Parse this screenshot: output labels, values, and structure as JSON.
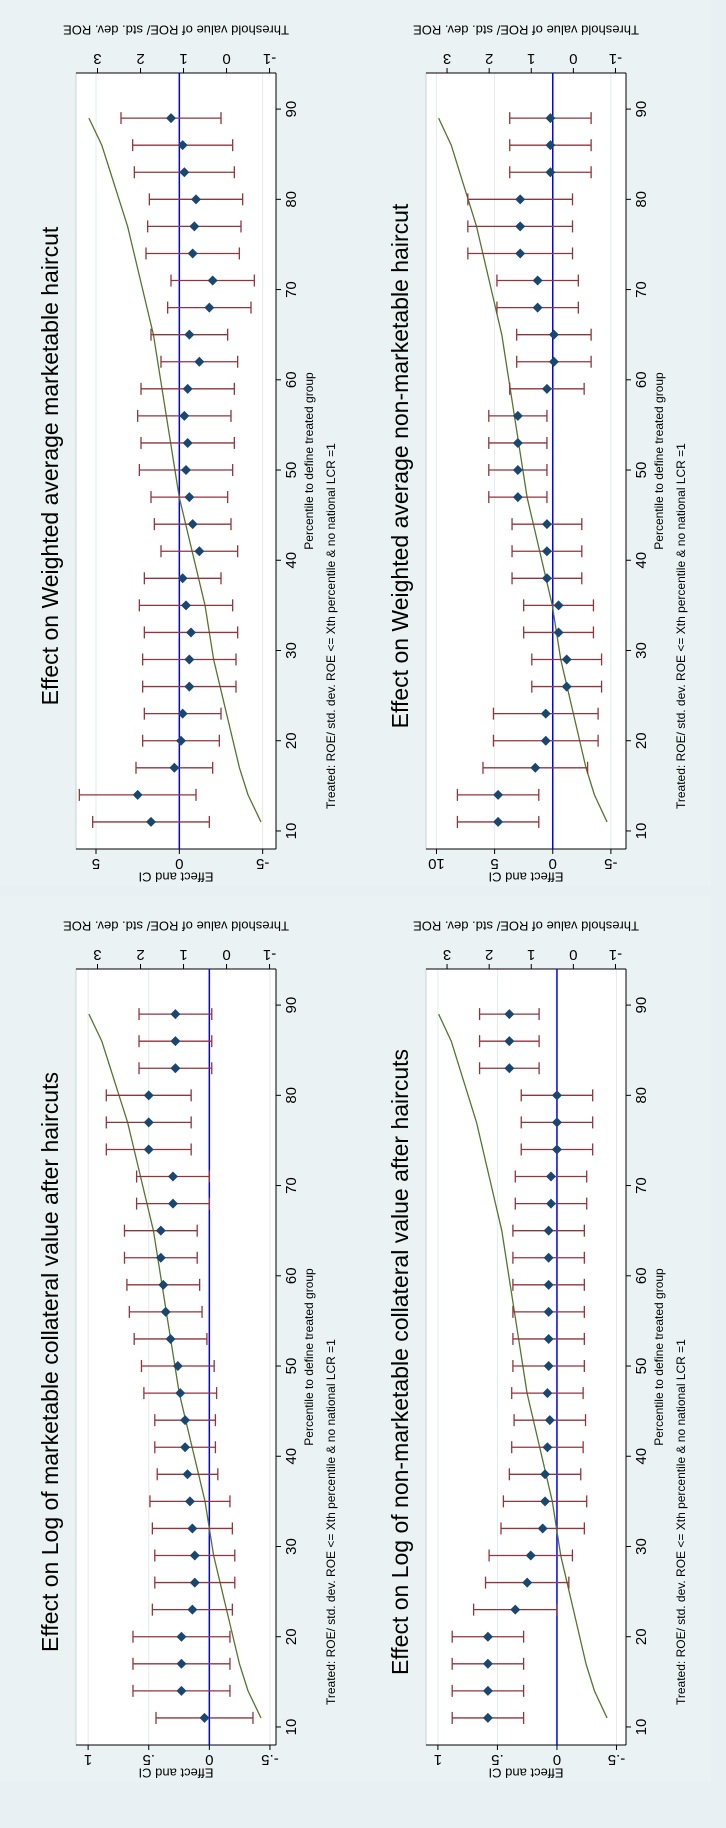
{
  "chart_data": [
    {
      "type": "errorbar",
      "title": "Effect on Weighted average marketable haircut",
      "xlabel": "Percentile to define treated group",
      "note": "Treated: ROE/ std. dev. ROE <= Xth percentile & no national LCR =1",
      "ylabel": "Effect and CI",
      "y2label": "Threshold value of ROE/ std. dev. ROE",
      "xlim": [
        8,
        94
      ],
      "xticks": [
        10,
        20,
        30,
        40,
        50,
        60,
        70,
        80,
        90
      ],
      "ylim": [
        -5.8,
        6.2
      ],
      "yticks": [
        5,
        0,
        -5
      ],
      "y2lim": [
        -1.15,
        3.5
      ],
      "y2ticks": [
        -1,
        0,
        1,
        2,
        3
      ],
      "grid": true,
      "marker_color": "#1a476f",
      "ci_color": "#90353b",
      "threshold_color": "#55752f",
      "zero_line_color": "#0000ff",
      "x": [
        11,
        14,
        17,
        20,
        23,
        26,
        29,
        32,
        35,
        38,
        41,
        44,
        47,
        50,
        53,
        56,
        59,
        62,
        65,
        68,
        71,
        74,
        77,
        80,
        83,
        86,
        89
      ],
      "values": [
        1.7,
        2.5,
        0.3,
        -0.1,
        -0.2,
        -0.6,
        -0.6,
        -0.7,
        -0.4,
        -0.2,
        -1.2,
        -0.8,
        -0.6,
        -0.4,
        -0.5,
        -0.3,
        -0.5,
        -1.2,
        -0.6,
        -1.8,
        -2.0,
        -0.8,
        -0.9,
        -1.0,
        -0.3,
        -0.2,
        0.5
      ],
      "lower": [
        -1.8,
        -1.0,
        -2.0,
        -2.4,
        -2.5,
        -3.4,
        -3.4,
        -3.5,
        -3.2,
        -2.5,
        -3.5,
        -3.1,
        -2.9,
        -3.2,
        -3.3,
        -3.1,
        -3.3,
        -3.5,
        -2.9,
        -4.3,
        -4.5,
        -3.6,
        -3.7,
        -3.8,
        -3.3,
        -3.2,
        -2.5
      ],
      "upper": [
        5.2,
        6.0,
        2.6,
        2.2,
        2.1,
        2.2,
        2.2,
        2.1,
        2.4,
        2.1,
        1.1,
        1.5,
        1.7,
        2.4,
        2.3,
        2.5,
        2.3,
        1.1,
        1.7,
        0.7,
        0.5,
        2.0,
        1.9,
        1.8,
        2.7,
        2.8,
        3.5
      ],
      "threshold": [
        -0.8,
        -0.5,
        -0.3,
        -0.15,
        0.0,
        0.15,
        0.3,
        0.4,
        0.5,
        0.65,
        0.8,
        0.95,
        1.1,
        1.2,
        1.3,
        1.4,
        1.5,
        1.6,
        1.7,
        1.85,
        2.0,
        2.15,
        2.3,
        2.5,
        2.7,
        2.9,
        3.2
      ]
    },
    {
      "type": "errorbar",
      "title": "Effect on Weighted average non-marketable haircut",
      "xlabel": "Percentile to define treated group",
      "note": "Treated: ROE/ std. dev. ROE <= Xth percentile & no national LCR =1",
      "ylabel": "Effect and CI",
      "y2label": "Threshold value of ROE/ std. dev. ROE",
      "xlim": [
        8,
        94
      ],
      "xticks": [
        10,
        20,
        30,
        40,
        50,
        60,
        70,
        80,
        90
      ],
      "ylim": [
        -6.3,
        10.9
      ],
      "yticks": [
        10,
        5,
        0,
        -5
      ],
      "y2lim": [
        -1.25,
        3.5
      ],
      "y2ticks": [
        -1,
        0,
        1,
        2,
        3
      ],
      "grid": true,
      "marker_color": "#1a476f",
      "ci_color": "#90353b",
      "threshold_color": "#55752f",
      "zero_line_color": "#0000ff",
      "x": [
        11,
        14,
        17,
        20,
        23,
        26,
        29,
        32,
        35,
        38,
        41,
        44,
        47,
        50,
        53,
        56,
        59,
        62,
        65,
        68,
        71,
        74,
        77,
        80,
        83,
        86,
        89
      ],
      "values": [
        4.7,
        4.7,
        1.5,
        0.6,
        0.6,
        -1.2,
        -1.2,
        -0.5,
        -0.5,
        0.5,
        0.5,
        0.5,
        3.0,
        3.0,
        3.0,
        3.0,
        0.5,
        -0.1,
        -0.1,
        1.3,
        1.3,
        2.8,
        2.8,
        2.8,
        0.2,
        0.2,
        0.2
      ],
      "lower": [
        1.2,
        1.2,
        -3.0,
        -3.9,
        -3.9,
        -4.2,
        -4.2,
        -3.5,
        -3.5,
        -2.5,
        -2.5,
        -2.5,
        0.5,
        0.5,
        0.5,
        0.5,
        -2.7,
        -3.3,
        -3.3,
        -2.2,
        -2.2,
        -1.7,
        -1.7,
        -1.7,
        -3.3,
        -3.3,
        -3.3
      ],
      "upper": [
        8.2,
        8.2,
        6.0,
        5.1,
        5.1,
        1.8,
        1.8,
        2.5,
        2.5,
        3.5,
        3.5,
        3.5,
        5.5,
        5.5,
        5.5,
        5.5,
        3.7,
        3.1,
        3.1,
        4.8,
        4.8,
        7.3,
        7.3,
        7.3,
        3.7,
        3.7,
        3.7
      ],
      "threshold": [
        -0.8,
        -0.5,
        -0.3,
        -0.15,
        0.0,
        0.15,
        0.3,
        0.4,
        0.5,
        0.65,
        0.8,
        0.95,
        1.1,
        1.2,
        1.3,
        1.4,
        1.5,
        1.6,
        1.7,
        1.85,
        2.0,
        2.15,
        2.3,
        2.5,
        2.7,
        2.9,
        3.2
      ]
    },
    {
      "type": "errorbar",
      "title": "Effect on Log of marketable collateral value after haircuts",
      "xlabel": "Percentile to define treated group",
      "note": "Treated: ROE/ std. dev. ROE <= Xth percentile & no national LCR =1",
      "ylabel": "Effect and CI",
      "y2label": "Threshold value of ROE/ std. dev. ROE",
      "xlim": [
        8,
        94
      ],
      "xticks": [
        10,
        20,
        30,
        40,
        50,
        60,
        70,
        80,
        90
      ],
      "ylim": [
        -0.55,
        1.1
      ],
      "yticks": [
        1,
        {
          "value": 0.5,
          "label": ".5"
        },
        0,
        {
          "value": -0.5,
          "label": "-.5"
        }
      ],
      "y2lim": [
        -1.15,
        3.5
      ],
      "y2ticks": [
        -1,
        0,
        1,
        2,
        3
      ],
      "grid": true,
      "marker_color": "#1a476f",
      "ci_color": "#90353b",
      "threshold_color": "#55752f",
      "zero_line_color": "#0000ff",
      "x": [
        11,
        14,
        17,
        20,
        23,
        26,
        29,
        32,
        35,
        38,
        41,
        44,
        47,
        50,
        53,
        56,
        59,
        62,
        65,
        68,
        71,
        74,
        77,
        80,
        83,
        86,
        89
      ],
      "values": [
        0.04,
        0.23,
        0.23,
        0.23,
        0.14,
        0.12,
        0.12,
        0.14,
        0.16,
        0.18,
        0.2,
        0.2,
        0.24,
        0.26,
        0.32,
        0.36,
        0.38,
        0.4,
        0.4,
        0.3,
        0.3,
        0.5,
        0.5,
        0.5,
        0.28,
        0.28,
        0.28
      ],
      "lower": [
        -0.36,
        -0.17,
        -0.17,
        -0.17,
        -0.19,
        -0.21,
        -0.21,
        -0.19,
        -0.17,
        -0.07,
        -0.05,
        -0.05,
        -0.06,
        -0.04,
        0.02,
        0.06,
        0.08,
        0.1,
        0.1,
        0.0,
        0.0,
        0.15,
        0.15,
        0.15,
        -0.02,
        -0.02,
        -0.02
      ],
      "upper": [
        0.44,
        0.63,
        0.63,
        0.63,
        0.47,
        0.45,
        0.45,
        0.47,
        0.49,
        0.43,
        0.45,
        0.45,
        0.54,
        0.56,
        0.62,
        0.66,
        0.68,
        0.7,
        0.7,
        0.6,
        0.6,
        0.85,
        0.85,
        0.85,
        0.58,
        0.58,
        0.58
      ],
      "threshold": [
        -0.8,
        -0.5,
        -0.3,
        -0.15,
        0.0,
        0.15,
        0.3,
        0.4,
        0.5,
        0.65,
        0.8,
        0.95,
        1.1,
        1.2,
        1.3,
        1.4,
        1.5,
        1.6,
        1.7,
        1.85,
        2.0,
        2.15,
        2.3,
        2.5,
        2.7,
        2.9,
        3.2
      ]
    },
    {
      "type": "errorbar",
      "title": "Effect on Log of non-marketable collateral value after haircuts",
      "xlabel": "Percentile to define treated group",
      "note": "Treated: ROE/ std. dev. ROE <= Xth percentile & no national LCR =1",
      "ylabel": "Effect and CI",
      "y2label": "Threshold value of ROE/ std. dev. ROE",
      "xlim": [
        8,
        94
      ],
      "xticks": [
        10,
        20,
        30,
        40,
        50,
        60,
        70,
        80,
        90
      ],
      "ylim": [
        -0.58,
        1.1
      ],
      "yticks": [
        1,
        {
          "value": 0.5,
          "label": ".5"
        },
        0,
        {
          "value": -0.5,
          "label": "-.5"
        }
      ],
      "y2lim": [
        -1.25,
        3.5
      ],
      "y2ticks": [
        -1,
        0,
        1,
        2,
        3
      ],
      "grid": true,
      "marker_color": "#1a476f",
      "ci_color": "#90353b",
      "threshold_color": "#55752f",
      "zero_line_color": "#0000ff",
      "x": [
        11,
        14,
        17,
        20,
        23,
        26,
        29,
        32,
        35,
        38,
        41,
        44,
        47,
        50,
        53,
        56,
        59,
        62,
        65,
        68,
        71,
        74,
        77,
        80,
        83,
        86,
        89
      ],
      "values": [
        0.58,
        0.58,
        0.58,
        0.58,
        0.35,
        0.25,
        0.22,
        0.12,
        0.1,
        0.1,
        0.08,
        0.06,
        0.08,
        0.07,
        0.07,
        0.07,
        0.07,
        0.07,
        0.07,
        0.05,
        0.05,
        0.0,
        0.0,
        0.0,
        0.4,
        0.4,
        0.4
      ],
      "lower": [
        0.28,
        0.28,
        0.28,
        0.28,
        0.0,
        -0.1,
        -0.13,
        -0.23,
        -0.25,
        -0.2,
        -0.22,
        -0.24,
        -0.22,
        -0.23,
        -0.23,
        -0.23,
        -0.23,
        -0.23,
        -0.23,
        -0.25,
        -0.25,
        -0.3,
        -0.3,
        -0.3,
        0.15,
        0.15,
        0.15
      ],
      "upper": [
        0.88,
        0.88,
        0.88,
        0.88,
        0.7,
        0.6,
        0.57,
        0.47,
        0.45,
        0.4,
        0.38,
        0.36,
        0.38,
        0.37,
        0.37,
        0.37,
        0.37,
        0.37,
        0.37,
        0.35,
        0.35,
        0.3,
        0.3,
        0.3,
        0.65,
        0.65,
        0.65
      ],
      "threshold": [
        -0.8,
        -0.5,
        -0.3,
        -0.15,
        0.0,
        0.15,
        0.3,
        0.4,
        0.5,
        0.65,
        0.8,
        0.95,
        1.1,
        1.2,
        1.3,
        1.4,
        1.5,
        1.6,
        1.7,
        1.85,
        2.0,
        2.15,
        2.3,
        2.5,
        2.7,
        2.9,
        3.2
      ]
    }
  ]
}
